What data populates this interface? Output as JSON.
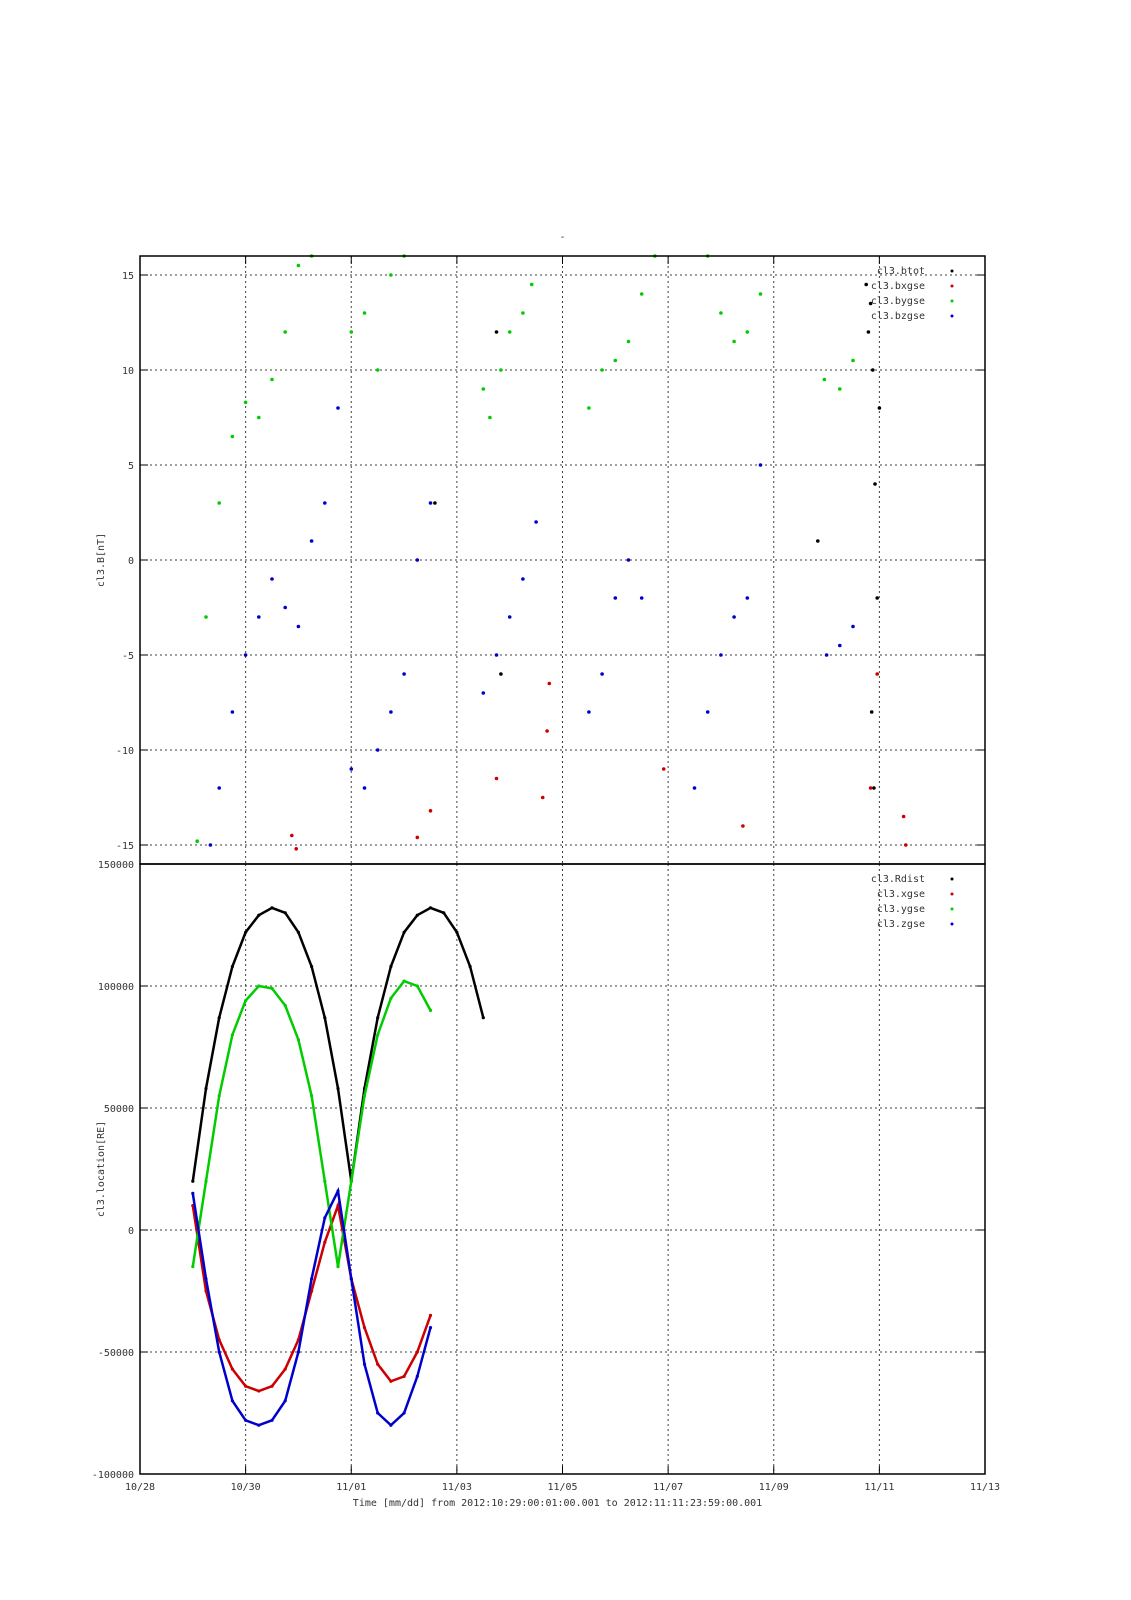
{
  "chart_data": [
    {
      "type": "scatter",
      "title": "-",
      "ylabel": "cl3.B[nT]",
      "ylim": [
        -16,
        16
      ],
      "xlim": [
        "2012-10-28",
        "2012-11-13"
      ],
      "yticks": [
        15,
        10,
        5,
        0,
        -5,
        -10,
        -15
      ],
      "grid": true,
      "legend_position": "top-right",
      "series": [
        {
          "name": "cl3.btot",
          "color": "#000000",
          "points": [
            [
              "2012-11-10T18:00",
              14.5
            ],
            [
              "2012-11-10T19:00",
              12
            ],
            [
              "2012-11-10T20:00",
              13.5
            ],
            [
              "2012-11-10T21:00",
              10
            ],
            [
              "2012-11-10T22:00",
              4
            ],
            [
              "2012-11-10T23:00",
              -2
            ],
            [
              "2012-11-11T00:00",
              8
            ],
            [
              "2012-11-10T20:30",
              -8
            ],
            [
              "2012-11-10T21:30",
              -12
            ],
            [
              "2012-11-03T18:00",
              12
            ],
            [
              "2012-11-03T20:00",
              -6
            ],
            [
              "2012-11-02T14:00",
              3
            ],
            [
              "2012-11-09T20:00",
              1
            ]
          ]
        },
        {
          "name": "cl3.bxgse",
          "color": "#cc0000",
          "points": [
            [
              "2012-10-30T21:00",
              -14.5
            ],
            [
              "2012-10-30T23:00",
              -15.2
            ],
            [
              "2012-11-02T06:00",
              -14.6
            ],
            [
              "2012-11-02T12:00",
              -13.2
            ],
            [
              "2012-11-03T18:00",
              -11.5
            ],
            [
              "2012-11-04T15:00",
              -12.5
            ],
            [
              "2012-11-04T18:00",
              -6.5
            ],
            [
              "2012-11-04T17:00",
              -9
            ],
            [
              "2012-11-06T22:00",
              -11
            ],
            [
              "2012-11-08T10:00",
              -14
            ],
            [
              "2012-11-10T20:00",
              -12
            ],
            [
              "2012-11-10T23:00",
              -6
            ],
            [
              "2012-11-11T11:00",
              -13.5
            ],
            [
              "2012-11-11T12:00",
              -15
            ]
          ]
        },
        {
          "name": "cl3.bygse",
          "color": "#00cc00",
          "points": [
            [
              "2012-10-29T02:00",
              -14.8
            ],
            [
              "2012-10-29T06:00",
              -3
            ],
            [
              "2012-10-29T12:00",
              3
            ],
            [
              "2012-10-29T18:00",
              6.5
            ],
            [
              "2012-10-30T00:00",
              8.3
            ],
            [
              "2012-10-30T06:00",
              7.5
            ],
            [
              "2012-10-30T12:00",
              9.5
            ],
            [
              "2012-10-30T18:00",
              12
            ],
            [
              "2012-10-31T00:00",
              15.5
            ],
            [
              "2012-10-31T06:00",
              16
            ],
            [
              "2012-11-01T00:00",
              12
            ],
            [
              "2012-11-01T06:00",
              13
            ],
            [
              "2012-11-01T12:00",
              10
            ],
            [
              "2012-11-01T18:00",
              15
            ],
            [
              "2012-11-02T00:00",
              16
            ],
            [
              "2012-11-03T12:00",
              9
            ],
            [
              "2012-11-03T15:00",
              7.5
            ],
            [
              "2012-11-03T20:00",
              10
            ],
            [
              "2012-11-04T00:00",
              12
            ],
            [
              "2012-11-04T06:00",
              13
            ],
            [
              "2012-11-04T10:00",
              14.5
            ],
            [
              "2012-11-05T12:00",
              8
            ],
            [
              "2012-11-05T18:00",
              10
            ],
            [
              "2012-11-06T00:00",
              10.5
            ],
            [
              "2012-11-06T06:00",
              11.5
            ],
            [
              "2012-11-06T12:00",
              14
            ],
            [
              "2012-11-06T18:00",
              16
            ],
            [
              "2012-11-07T18:00",
              16
            ],
            [
              "2012-11-08T00:00",
              13
            ],
            [
              "2012-11-08T06:00",
              11.5
            ],
            [
              "2012-11-08T12:00",
              12
            ],
            [
              "2012-11-08T18:00",
              14
            ],
            [
              "2012-11-09T23:00",
              9.5
            ],
            [
              "2012-11-10T06:00",
              9
            ],
            [
              "2012-11-10T12:00",
              10.5
            ]
          ]
        },
        {
          "name": "cl3.bzgse",
          "color": "#0000cc",
          "points": [
            [
              "2012-10-29T08:00",
              -15
            ],
            [
              "2012-10-29T12:00",
              -12
            ],
            [
              "2012-10-29T18:00",
              -8
            ],
            [
              "2012-10-30T00:00",
              -5
            ],
            [
              "2012-10-30T06:00",
              -3
            ],
            [
              "2012-10-30T12:00",
              -1
            ],
            [
              "2012-10-30T18:00",
              -2.5
            ],
            [
              "2012-10-31T00:00",
              -3.5
            ],
            [
              "2012-10-31T06:00",
              1
            ],
            [
              "2012-10-31T12:00",
              3
            ],
            [
              "2012-10-31T18:00",
              8
            ],
            [
              "2012-11-01T00:00",
              -11
            ],
            [
              "2012-11-01T06:00",
              -12
            ],
            [
              "2012-11-01T12:00",
              -10
            ],
            [
              "2012-11-01T18:00",
              -8
            ],
            [
              "2012-11-02T00:00",
              -6
            ],
            [
              "2012-11-02T06:00",
              0
            ],
            [
              "2012-11-02T12:00",
              3
            ],
            [
              "2012-11-03T12:00",
              -7
            ],
            [
              "2012-11-03T18:00",
              -5
            ],
            [
              "2012-11-04T00:00",
              -3
            ],
            [
              "2012-11-04T06:00",
              -1
            ],
            [
              "2012-11-04T12:00",
              2
            ],
            [
              "2012-11-05T12:00",
              -8
            ],
            [
              "2012-11-05T18:00",
              -6
            ],
            [
              "2012-11-06T00:00",
              -2
            ],
            [
              "2012-11-06T06:00",
              0
            ],
            [
              "2012-11-06T12:00",
              -2
            ],
            [
              "2012-11-07T12:00",
              -12
            ],
            [
              "2012-11-07T18:00",
              -8
            ],
            [
              "2012-11-08T00:00",
              -5
            ],
            [
              "2012-11-08T06:00",
              -3
            ],
            [
              "2012-11-08T12:00",
              -2
            ],
            [
              "2012-11-08T18:00",
              5
            ],
            [
              "2012-11-10T00:00",
              -5
            ],
            [
              "2012-11-10T06:00",
              -4.5
            ],
            [
              "2012-11-10T12:00",
              -3.5
            ]
          ]
        }
      ]
    },
    {
      "type": "line",
      "ylabel": "cl3.location[RE]",
      "xlabel": "Time [mm/dd]  from 2012:10:29:00:01:00.001  to  2012:11:11:23:59:00.001",
      "ylim": [
        -100000,
        150000
      ],
      "xlim": [
        "2012-10-28",
        "2012-11-13"
      ],
      "x_tick_labels": [
        "10/28",
        "10/30",
        "11/01",
        "11/03",
        "11/05",
        "11/07",
        "11/09",
        "11/11",
        "11/13"
      ],
      "yticks": [
        150000,
        100000,
        50000,
        0,
        -50000,
        -100000
      ],
      "grid": true,
      "legend_position": "top-right",
      "series": [
        {
          "name": "cl3.Rdist",
          "color": "#000000",
          "points": [
            [
              "2012-10-29T00:00",
              20000
            ],
            [
              "2012-10-29T06:00",
              58000
            ],
            [
              "2012-10-29T12:00",
              87000
            ],
            [
              "2012-10-29T18:00",
              108000
            ],
            [
              "2012-10-30T00:00",
              122000
            ],
            [
              "2012-10-30T06:00",
              129000
            ],
            [
              "2012-10-30T12:00",
              132000
            ],
            [
              "2012-10-30T18:00",
              130000
            ],
            [
              "2012-10-31T00:00",
              122000
            ],
            [
              "2012-10-31T06:00",
              108000
            ],
            [
              "2012-10-31T12:00",
              87000
            ],
            [
              "2012-10-31T18:00",
              58000
            ],
            [
              "2012-11-01T00:00",
              20000
            ],
            [
              "2012-11-01T06:00",
              58000
            ],
            [
              "2012-11-01T12:00",
              87000
            ],
            [
              "2012-11-01T18:00",
              108000
            ],
            [
              "2012-11-02T00:00",
              122000
            ],
            [
              "2012-11-02T06:00",
              129000
            ],
            [
              "2012-11-02T12:00",
              132000
            ],
            [
              "2012-11-02T18:00",
              130000
            ],
            [
              "2012-11-03T00:00",
              122000
            ],
            [
              "2012-11-03T06:00",
              108000
            ],
            [
              "2012-11-03T12:00",
              87000
            ]
          ]
        },
        {
          "name": "cl3.xgse",
          "color": "#cc0000",
          "points": [
            [
              "2012-10-29T00:00",
              10000
            ],
            [
              "2012-10-29T06:00",
              -25000
            ],
            [
              "2012-10-29T12:00",
              -45000
            ],
            [
              "2012-10-29T18:00",
              -57000
            ],
            [
              "2012-10-30T00:00",
              -64000
            ],
            [
              "2012-10-30T06:00",
              -66000
            ],
            [
              "2012-10-30T12:00",
              -64000
            ],
            [
              "2012-10-30T18:00",
              -57000
            ],
            [
              "2012-10-31T00:00",
              -45000
            ],
            [
              "2012-10-31T06:00",
              -25000
            ],
            [
              "2012-10-31T12:00",
              -5000
            ],
            [
              "2012-10-31T18:00",
              10000
            ],
            [
              "2012-11-01T00:00",
              -20000
            ],
            [
              "2012-11-01T06:00",
              -40000
            ],
            [
              "2012-11-01T12:00",
              -55000
            ],
            [
              "2012-11-01T18:00",
              -62000
            ],
            [
              "2012-11-02T00:00",
              -60000
            ],
            [
              "2012-11-02T06:00",
              -50000
            ],
            [
              "2012-11-02T12:00",
              -35000
            ]
          ]
        },
        {
          "name": "cl3.ygse",
          "color": "#00cc00",
          "points": [
            [
              "2012-10-29T00:00",
              -15000
            ],
            [
              "2012-10-29T06:00",
              20000
            ],
            [
              "2012-10-29T12:00",
              55000
            ],
            [
              "2012-10-29T18:00",
              80000
            ],
            [
              "2012-10-30T00:00",
              94000
            ],
            [
              "2012-10-30T06:00",
              100000
            ],
            [
              "2012-10-30T12:00",
              99000
            ],
            [
              "2012-10-30T18:00",
              92000
            ],
            [
              "2012-10-31T00:00",
              78000
            ],
            [
              "2012-10-31T06:00",
              55000
            ],
            [
              "2012-10-31T12:00",
              20000
            ],
            [
              "2012-10-31T18:00",
              -15000
            ],
            [
              "2012-11-01T00:00",
              20000
            ],
            [
              "2012-11-01T06:00",
              55000
            ],
            [
              "2012-11-01T12:00",
              80000
            ],
            [
              "2012-11-01T18:00",
              95000
            ],
            [
              "2012-11-02T00:00",
              102000
            ],
            [
              "2012-11-02T06:00",
              100000
            ],
            [
              "2012-11-02T12:00",
              90000
            ]
          ]
        },
        {
          "name": "cl3.zgse",
          "color": "#0000cc",
          "points": [
            [
              "2012-10-29T00:00",
              15000
            ],
            [
              "2012-10-29T06:00",
              -20000
            ],
            [
              "2012-10-29T12:00",
              -50000
            ],
            [
              "2012-10-29T18:00",
              -70000
            ],
            [
              "2012-10-30T00:00",
              -78000
            ],
            [
              "2012-10-30T06:00",
              -80000
            ],
            [
              "2012-10-30T12:00",
              -78000
            ],
            [
              "2012-10-30T18:00",
              -70000
            ],
            [
              "2012-10-31T00:00",
              -50000
            ],
            [
              "2012-10-31T06:00",
              -20000
            ],
            [
              "2012-10-31T12:00",
              5000
            ],
            [
              "2012-10-31T18:00",
              16000
            ],
            [
              "2012-11-01T00:00",
              -20000
            ],
            [
              "2012-11-01T06:00",
              -55000
            ],
            [
              "2012-11-01T12:00",
              -75000
            ],
            [
              "2012-11-01T18:00",
              -80000
            ],
            [
              "2012-11-02T00:00",
              -75000
            ],
            [
              "2012-11-02T06:00",
              -60000
            ],
            [
              "2012-11-02T12:00",
              -40000
            ]
          ]
        }
      ]
    }
  ]
}
